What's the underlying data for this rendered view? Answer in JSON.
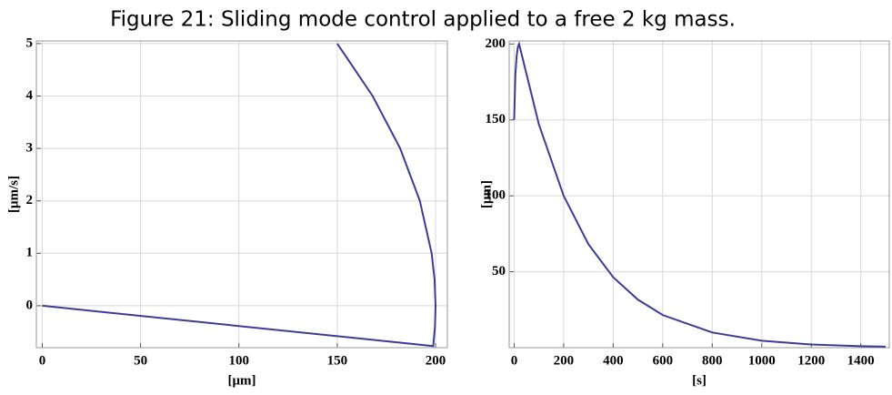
{
  "figure_title": "Figure 21: Sliding mode control applied to a free 2 kg mass.",
  "chart_data": [
    {
      "type": "line",
      "x_label": "[μm]",
      "y_label": "[μm/s]",
      "xlim": [
        -3,
        206
      ],
      "ylim": [
        -0.8,
        5.05
      ],
      "xticks": [
        0,
        50,
        100,
        150,
        200
      ],
      "yticks": [
        0,
        1,
        2,
        3,
        4,
        5
      ],
      "grid": true,
      "series": [
        {
          "color": "#3c3c96",
          "x": [
            0,
            198.8,
            199.7,
            200,
            199.5,
            198,
            192,
            182,
            168,
            150
          ],
          "values": [
            0,
            -0.77,
            -0.4,
            0,
            0.5,
            1,
            2,
            3,
            4,
            5
          ]
        }
      ]
    },
    {
      "type": "line",
      "x_label": "[s]",
      "y_label": "[μm]",
      "xlim": [
        -20,
        1515
      ],
      "ylim": [
        0,
        202
      ],
      "xticks": [
        0,
        200,
        400,
        600,
        800,
        1000,
        1200,
        1400
      ],
      "yticks": [
        50,
        100,
        150,
        200
      ],
      "grid": true,
      "series": [
        {
          "color": "#3c3c96",
          "x": [
            0,
            5,
            10,
            15,
            20,
            100,
            200,
            300,
            400,
            500,
            600,
            800,
            1000,
            1200,
            1400,
            1500
          ],
          "values": [
            150,
            180,
            192,
            198,
            200,
            147,
            100,
            68.1,
            46.4,
            31.6,
            21.5,
            10,
            4.6,
            2.1,
            1,
            0.7
          ]
        }
      ]
    }
  ]
}
